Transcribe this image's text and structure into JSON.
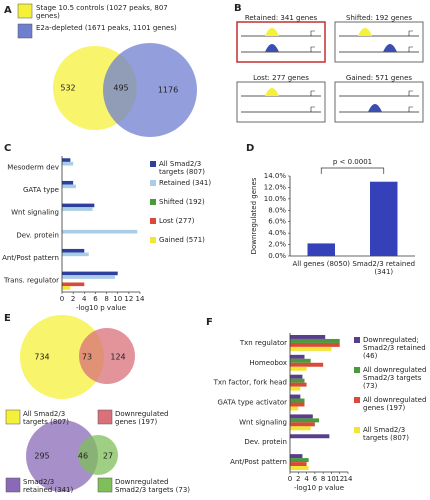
{
  "panel_labels": [
    "A",
    "B",
    "C",
    "D",
    "E",
    "F"
  ],
  "panel_b": {
    "boxes": [
      "Retained: 341 genes",
      "Shifted: 192 genes",
      "Lost: 277 genes",
      "Gained: 571 genes"
    ]
  },
  "chart_data": [
    {
      "type": "venn",
      "sets": [
        {
          "name": "Stage 10.5 controls (1027 peaks, 807 genes)",
          "color": "#f5f03a"
        },
        {
          "name": "E2a-depleted (1671 peaks, 1101 genes)",
          "color": "#6f7fd0"
        }
      ],
      "values": [
        532,
        495,
        1176
      ]
    },
    {
      "type": "hbar",
      "categories": [
        "Mesoderm dev",
        "GATA type",
        "Wnt signaling",
        "Dev. protein",
        "Ant/Post pattern",
        "Trans. regulator"
      ],
      "series": [
        {
          "name": "All Smad2/3 targets (807)",
          "color": "#2e3f9e",
          "values": [
            1.5,
            2,
            5.8,
            null,
            4,
            10
          ]
        },
        {
          "name": "Retained (341)",
          "color": "#a9cde6",
          "values": [
            2,
            2.5,
            5.5,
            13.5,
            4.8,
            9.5
          ]
        },
        {
          "name": "Shifted (192)",
          "color": "#4a9a3c",
          "values": [
            null,
            null,
            null,
            null,
            null,
            null
          ]
        },
        {
          "name": "Lost (277)",
          "color": "#d94a3a",
          "values": [
            null,
            null,
            null,
            null,
            null,
            4
          ]
        },
        {
          "name": "Gained (571)",
          "color": "#f2e534",
          "values": [
            null,
            null,
            null,
            null,
            null,
            1.5
          ]
        }
      ],
      "xlim": [
        0,
        14
      ],
      "xticks": [
        0,
        2,
        4,
        6,
        8,
        10,
        12,
        14
      ],
      "xlabel": "-log10 p value"
    },
    {
      "type": "bar",
      "categories": [
        "All genes (8050)",
        "Smad2/3 retained (341)"
      ],
      "values": [
        2.2,
        13
      ],
      "color": "#3441b8",
      "ylim": [
        0,
        14
      ],
      "yticks": [
        {
          "value": 0,
          "label": "0.0%"
        },
        {
          "value": 2,
          "label": "2.0%"
        },
        {
          "value": 4,
          "label": "4.0%"
        },
        {
          "value": 6,
          "label": "6.0%"
        },
        {
          "value": 8,
          "label": "8.0%"
        },
        {
          "value": 10,
          "label": "10.0%"
        },
        {
          "value": 12,
          "label": "12.0%"
        },
        {
          "value": 14,
          "label": "14.0%"
        }
      ],
      "ylabel": "Downregulated genes",
      "annotation": "p < 0.0001"
    },
    {
      "type": "venn",
      "sets": [
        {
          "name": "All Smad2/3 targets (807)",
          "color": "#f5f03a"
        },
        {
          "name": "Downregulated genes (197)",
          "color": "#d9707a"
        }
      ],
      "values": [
        734,
        73,
        124
      ]
    },
    {
      "type": "venn",
      "sets": [
        {
          "name": "Smad2/3 retained (341)",
          "color": "#8a6ab8"
        },
        {
          "name": "Downregulated Smad2/3 targets (73)",
          "color": "#7fbf5a"
        }
      ],
      "values": [
        295,
        46,
        27
      ]
    },
    {
      "type": "hbar",
      "categories": [
        "Txn regulator",
        "Homeobox",
        "Txn factor, fork head",
        "GATA type activator",
        "Wnt signaling",
        "Dev. protein",
        "Ant/Post pattern"
      ],
      "series": [
        {
          "name": "Downregulated; Smad2/3 retained (46)",
          "color": "#5a3d8c",
          "values": [
            8.5,
            3.5,
            3,
            2.5,
            5.5,
            9.5,
            3
          ]
        },
        {
          "name": "All downregulated Smad2/3 targets (73)",
          "color": "#4a9a3c",
          "values": [
            12,
            5,
            3.5,
            3.5,
            7,
            null,
            4.5
          ]
        },
        {
          "name": "All downregulated genes (197)",
          "color": "#d94a3a",
          "values": [
            12,
            8,
            4,
            3.5,
            6,
            null,
            4
          ]
        },
        {
          "name": "All Smad2/3 targets (807)",
          "color": "#f2e534",
          "values": [
            10,
            4,
            2.5,
            2,
            5,
            null,
            4.5
          ]
        }
      ],
      "xlim": [
        0,
        14
      ],
      "xticks": [
        0,
        2,
        4,
        6,
        8,
        10,
        12,
        14
      ],
      "xlabel": "-log10 p value"
    }
  ]
}
